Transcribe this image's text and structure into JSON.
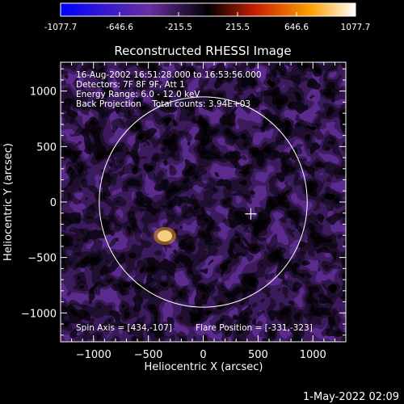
{
  "colorbar": {
    "tick_labels": [
      "-1077.7",
      "-646.6",
      "-215.5",
      "215.5",
      "646.6",
      "1077.7"
    ],
    "min": -1077.7,
    "max": 1077.7
  },
  "footer": {
    "timestamp": "1-May-2022 02:09"
  },
  "chart_data": {
    "type": "heatmap",
    "title": "Reconstructed RHESSI Image",
    "xlabel": "Heliocentric X (arcsec)",
    "ylabel": "Heliocentric Y (arcsec)",
    "xlim": [
      -1300,
      1300
    ],
    "ylim": [
      -1260,
      1260
    ],
    "x_ticks": [
      -1000,
      -500,
      0,
      500,
      1000
    ],
    "y_ticks": [
      -1000,
      -500,
      0,
      500,
      1000
    ],
    "x_tick_labels": [
      "−1000",
      "−500",
      "0",
      "500",
      "1000"
    ],
    "y_tick_labels": [
      "−1000",
      "−500",
      "0",
      "500",
      "1000"
    ],
    "info_lines": [
      "16-Aug-2002 16:51:28.000 to 16:53:56.000",
      "Detectors: 7F 8F 9F, Att 1",
      "Energy Range: 6.0 - 12.0 keV",
      "Back Projection    Total counts: 3.94E+03"
    ],
    "bottom_left_annotation": "Spin Axis = [434,-107]",
    "bottom_right_annotation": "Flare Position = [-331,-323]",
    "solar_disk": {
      "center": [
        0,
        0
      ],
      "radius_arcsec": 948
    },
    "marker": {
      "x": 434,
      "y": -107,
      "symbol": "+"
    },
    "colormap": [
      "#0000ff",
      "#6a2fa0",
      "#000000",
      "#c81e00",
      "#ffa000",
      "#ffffff"
    ]
  }
}
